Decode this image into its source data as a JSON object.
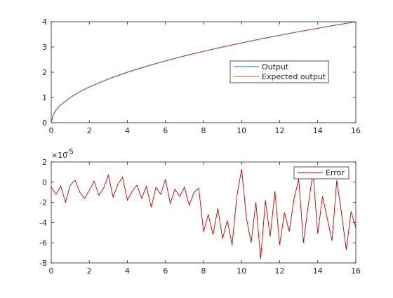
{
  "chart_data": [
    {
      "type": "line",
      "xlim": [
        0,
        16
      ],
      "ylim": [
        0,
        4
      ],
      "x_ticks": [
        "0",
        "2",
        "4",
        "6",
        "8",
        "10",
        "12",
        "14",
        "16"
      ],
      "y_ticks": [
        "0",
        "1",
        "2",
        "3",
        "4"
      ],
      "grid": false,
      "legend_position": "center-right",
      "x": [
        0,
        0.1,
        0.25,
        0.5,
        1,
        1.5,
        2,
        3,
        4,
        5,
        6,
        7,
        8,
        9,
        10,
        11,
        12,
        13,
        14,
        15,
        16
      ],
      "series": [
        {
          "name": "Output",
          "color": "#0072BD",
          "values": [
            0,
            0.316,
            0.5,
            0.707,
            1,
            1.225,
            1.414,
            1.732,
            2,
            2.236,
            2.449,
            2.646,
            2.828,
            3,
            3.162,
            3.317,
            3.464,
            3.606,
            3.742,
            3.873,
            4
          ]
        },
        {
          "name": "Expected output",
          "color": "#D95319",
          "values": [
            0,
            0.316,
            0.5,
            0.707,
            1,
            1.225,
            1.414,
            1.732,
            2,
            2.236,
            2.449,
            2.646,
            2.828,
            3,
            3.162,
            3.317,
            3.464,
            3.606,
            3.742,
            3.873,
            4
          ]
        }
      ]
    },
    {
      "type": "line",
      "xlim": [
        0,
        16
      ],
      "ylim": [
        -8,
        2
      ],
      "x_ticks": [
        "0",
        "2",
        "4",
        "6",
        "8",
        "10",
        "12",
        "14",
        "16"
      ],
      "y_ticks": [
        "-8",
        "-6",
        "-4",
        "-2",
        "0",
        "2"
      ],
      "y_exponent_label": "×10",
      "y_exponent": "-5",
      "grid": false,
      "legend_position": "top-right",
      "x": [
        0,
        0.25,
        0.5,
        0.75,
        1,
        1.25,
        1.5,
        1.75,
        2,
        2.25,
        2.5,
        2.75,
        3,
        3.25,
        3.5,
        3.75,
        4,
        4.25,
        4.5,
        4.75,
        5,
        5.25,
        5.5,
        5.75,
        6,
        6.25,
        6.5,
        6.75,
        7,
        7.25,
        7.5,
        7.75,
        8,
        8.25,
        8.5,
        8.75,
        9,
        9.25,
        9.5,
        9.75,
        10,
        10.25,
        10.5,
        10.75,
        11,
        11.25,
        11.5,
        11.75,
        12,
        12.25,
        12.5,
        12.75,
        13,
        13.25,
        13.5,
        13.75,
        14,
        14.25,
        14.5,
        14.75,
        15,
        15.25,
        15.5,
        15.75,
        16
      ],
      "series": [
        {
          "name": "Error",
          "color": "#C00000",
          "values": [
            -0.5,
            -1.2,
            -0.4,
            -2.0,
            -0.3,
            0.2,
            -1.0,
            -1.6,
            -0.8,
            0.1,
            -1.3,
            -0.6,
            0.7,
            -1.5,
            -0.2,
            0.5,
            -1.8,
            -0.9,
            -0.3,
            -1.6,
            -0.4,
            -2.5,
            -0.5,
            -1.2,
            0.3,
            -2.1,
            -0.7,
            -1.4,
            -0.5,
            -2.3,
            -1.0,
            -0.6,
            -4.9,
            -3.2,
            -5.2,
            -2.6,
            -5.6,
            -3.8,
            -6.2,
            -1.4,
            1.3,
            -3.5,
            -6.0,
            -2.0,
            -7.6,
            -1.8,
            -5.4,
            -0.9,
            -6.2,
            -3.0,
            -4.9,
            -1.7,
            0.3,
            -6.0,
            -2.3,
            1.0,
            -5.1,
            -1.4,
            -3.6,
            -5.8,
            0.2,
            -3.1,
            -6.7,
            -2.9,
            -4.5
          ]
        }
      ]
    }
  ]
}
